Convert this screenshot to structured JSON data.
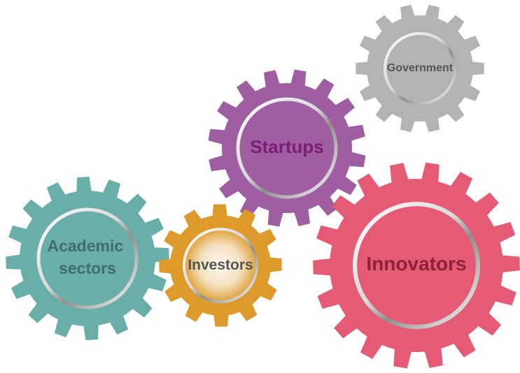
{
  "gears": [
    {
      "id": "government",
      "label_lines": [
        "Government"
      ],
      "color": "#b3b3b3",
      "text_color": "#555555"
    },
    {
      "id": "startups",
      "label_lines": [
        "Startups"
      ],
      "color": "#a05ea2",
      "text_color": "#7a1d74"
    },
    {
      "id": "academic",
      "label_lines": [
        "Academic",
        "sectors"
      ],
      "color": "#6aaeaa",
      "text_color": "#3f6c6f"
    },
    {
      "id": "investors",
      "label_lines": [
        "Investors"
      ],
      "color": "#dd9a2b",
      "text_color": "#555555"
    },
    {
      "id": "innovators",
      "label_lines": [
        "Innovators"
      ],
      "color": "#e55a74",
      "text_color": "#8c2235"
    }
  ]
}
